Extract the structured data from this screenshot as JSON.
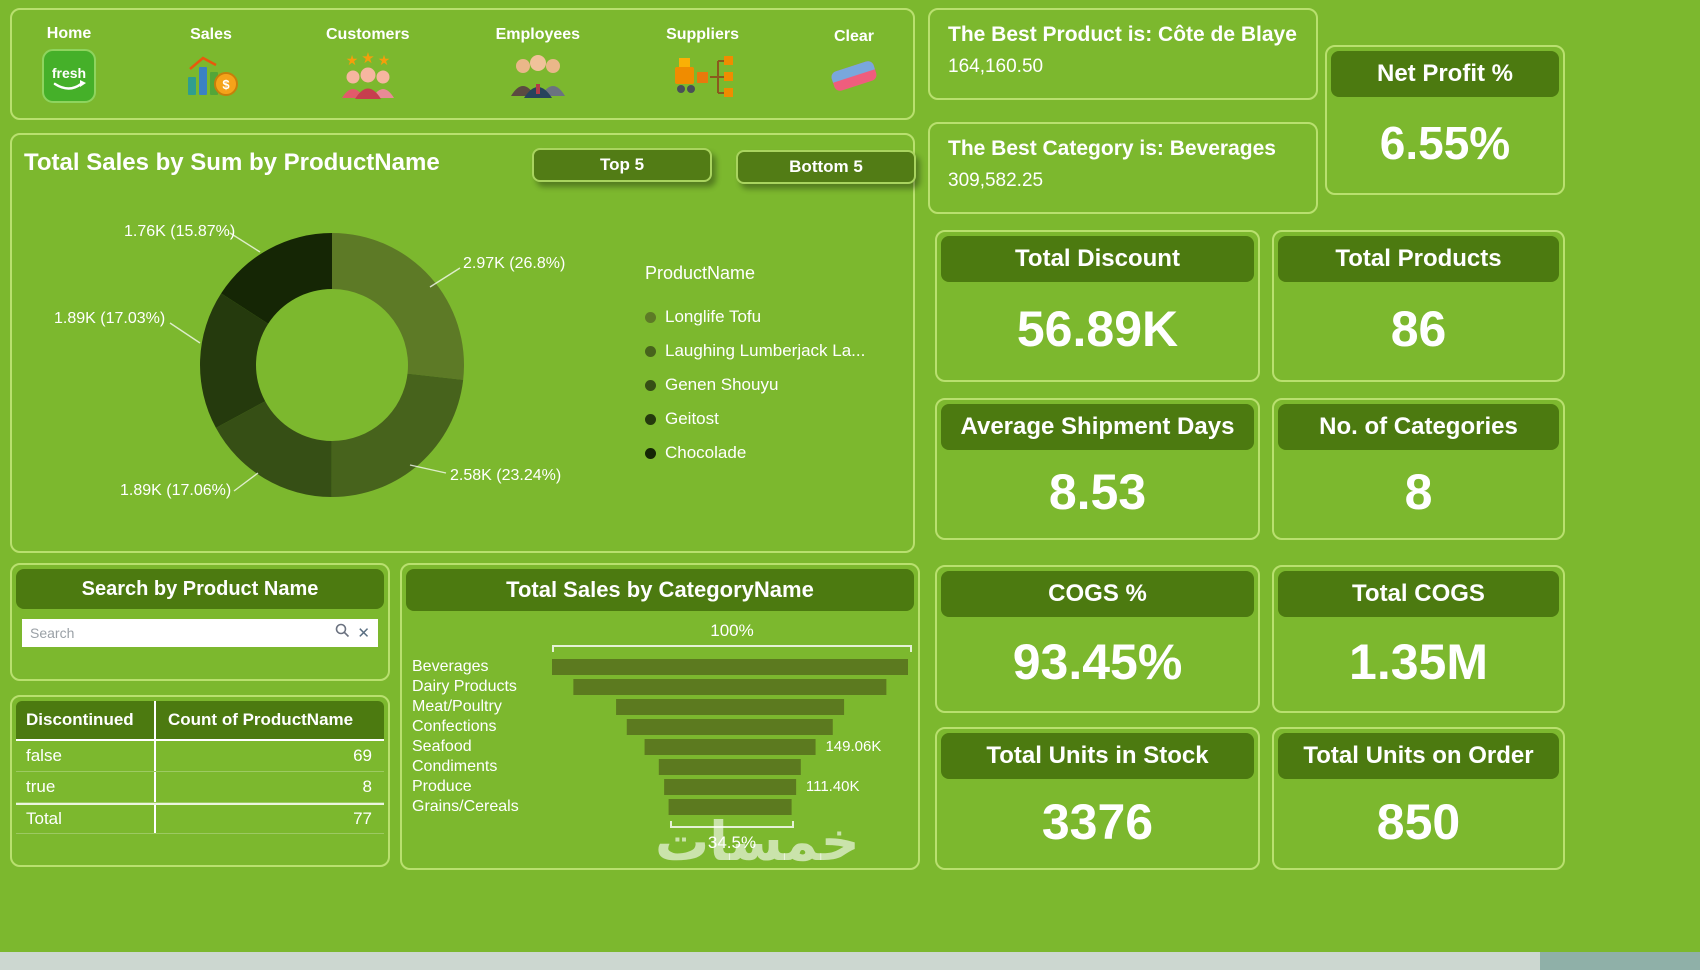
{
  "theme": {
    "background": "#7cb82e",
    "panel_border": "#b9e06f",
    "header_green": "#4c7a10",
    "text": "#ffffff",
    "funnel_bar": "#5c7a1f"
  },
  "nav": {
    "logo_text": "fresh",
    "items": [
      {
        "label": "Home",
        "icon": "fresh-logo-icon"
      },
      {
        "label": "Sales",
        "icon": "sales-chart-icon"
      },
      {
        "label": "Customers",
        "icon": "customers-icon"
      },
      {
        "label": "Employees",
        "icon": "employees-icon"
      },
      {
        "label": "Suppliers",
        "icon": "suppliers-icon"
      },
      {
        "label": "Clear",
        "icon": "eraser-icon"
      }
    ]
  },
  "best_product": {
    "title": "The Best Product is: Côte de Blaye",
    "value": "164,160.50"
  },
  "best_category": {
    "title": "The Best Category is: Beverages",
    "value": "309,582.25"
  },
  "kpis": [
    {
      "title": "Net Profit %",
      "value": "6.55%"
    },
    {
      "title": "Total Discount",
      "value": "56.89K"
    },
    {
      "title": "Total Products",
      "value": "86"
    },
    {
      "title": "Average Shipment Days",
      "value": "8.53"
    },
    {
      "title": "No. of Categories",
      "value": "8"
    },
    {
      "title": "COGS %",
      "value": "93.45%"
    },
    {
      "title": "Total COGS",
      "value": "1.35M"
    },
    {
      "title": "Total Units in Stock",
      "value": "3376"
    },
    {
      "title": "Total Units on Order",
      "value": "850"
    }
  ],
  "search_panel": {
    "title": "Search by Product Name",
    "placeholder": "Search"
  },
  "table": {
    "columns": [
      "Discontinued",
      "Count of ProductName"
    ],
    "rows": [
      {
        "discontinued": "false",
        "count": "69"
      },
      {
        "discontinued": "true",
        "count": "8"
      },
      {
        "discontinued": "Total",
        "count": "77"
      }
    ]
  },
  "watermark": "خمسات",
  "chart_data": [
    {
      "type": "pie",
      "title": "Total Sales by Sum by ProductName",
      "buttons": [
        "Top 5",
        "Bottom 5"
      ],
      "legend_title": "ProductName",
      "legend_position": "right",
      "series": [
        {
          "name": "Longlife Tofu",
          "label": "2.97K (26.8%)",
          "value": 2970,
          "pct": 26.8,
          "color": "#5d7a26"
        },
        {
          "name": "Laughing Lumberjack La...",
          "label": "2.58K (23.24%)",
          "value": 2580,
          "pct": 23.24,
          "color": "#47631c"
        },
        {
          "name": "Genen Shouyu",
          "label": "1.89K (17.06%)",
          "value": 1890,
          "pct": 17.06,
          "color": "#364f15"
        },
        {
          "name": "Geitost",
          "label": "1.89K (17.03%)",
          "value": 1890,
          "pct": 17.03,
          "color": "#253a0d"
        },
        {
          "name": "Chocolade",
          "label": "1.76K (15.87%)",
          "value": 1760,
          "pct": 15.87,
          "color": "#152605"
        }
      ]
    },
    {
      "type": "funnel",
      "title": "Total Sales by CategoryName",
      "categories": [
        "Beverages",
        "Dairy Products",
        "Meat/Poultry",
        "Confections",
        "Seafood",
        "Condiments",
        "Produce",
        "Grains/Cereals"
      ],
      "relative_widths": [
        100,
        88,
        64,
        58,
        48,
        40,
        37,
        34.5
      ],
      "top_label": "100%",
      "bottom_label": "34.5%",
      "data_labels": [
        {
          "index": 4,
          "text": "149.06K"
        },
        {
          "index": 6,
          "text": "111.40K"
        }
      ]
    }
  ]
}
